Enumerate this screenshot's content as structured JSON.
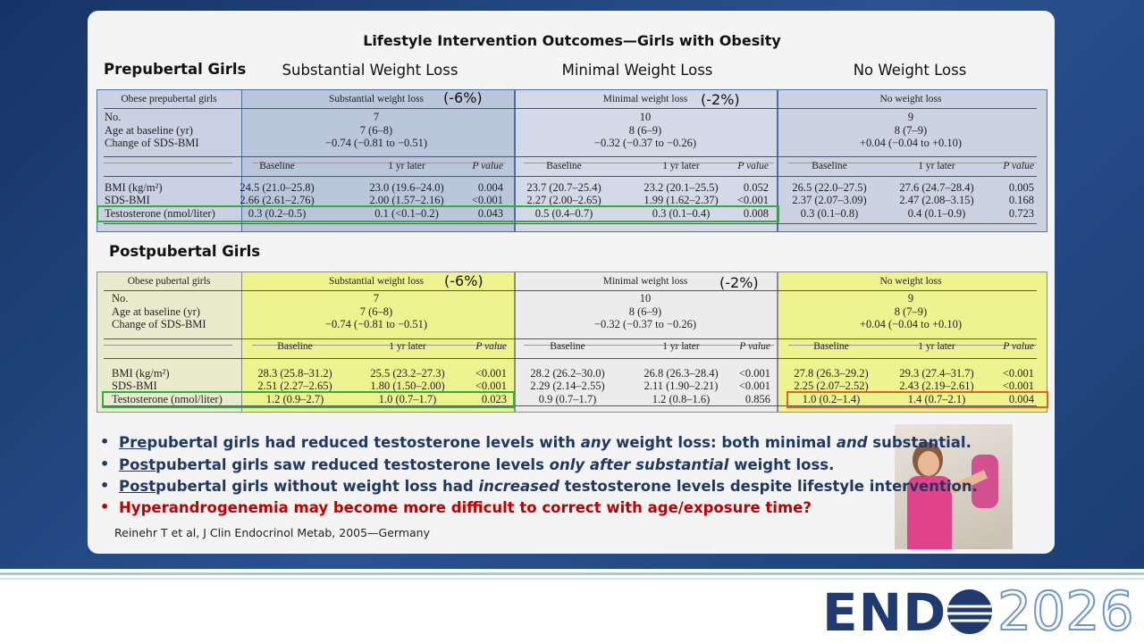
{
  "title": "Lifestyle Intervention Outcomes—Girls with Obesity",
  "column_headings": [
    "Substantial Weight Loss",
    "Minimal Weight Loss",
    "No Weight Loss"
  ],
  "tables": [
    {
      "label": "Prepubertal Girls",
      "corner": "Obese prepubertal girls",
      "groups": [
        "Substantial weight loss",
        "Minimal weight loss",
        "No weight loss"
      ],
      "annotations": [
        "(-6%)",
        "(-2%)"
      ],
      "summary": [
        {
          "label": "No.",
          "values": [
            "7",
            "10",
            "9"
          ]
        },
        {
          "label": "Age at baseline (yr)",
          "values": [
            "7 (6–8)",
            "8 (6–9)",
            "8 (7–9)"
          ]
        },
        {
          "label": "Change of SDS-BMI",
          "values": [
            "−0.74 (−0.81 to −0.51)",
            "−0.32 (−0.37 to −0.26)",
            "+0.04 (−0.04 to +0.10)"
          ]
        }
      ],
      "subheaders": [
        "Baseline",
        "1 yr later",
        "P value"
      ],
      "rows": [
        {
          "label": "BMI (kg/m²)",
          "values": [
            "24.5 (21.0–25.8)",
            "23.0 (19.6–24.0)",
            "0.004",
            "23.7 (20.7–25.4)",
            "23.2 (20.1–25.5)",
            "0.052",
            "26.5 (22.0–27.5)",
            "27.6 (24.7–28.4)",
            "0.005"
          ]
        },
        {
          "label": "SDS-BMI",
          "values": [
            "2.66 (2.61–2.76)",
            "2.00 (1.57–2.16)",
            "<0.001",
            "2.27 (2.00–2.65)",
            "1.99 (1.62–2.37)",
            "<0.001",
            "2.37 (2.07–3.09)",
            "2.47 (2.08–3.15)",
            "0.168"
          ]
        },
        {
          "label": "Testosterone (nmol/liter)",
          "values": [
            "0.3 (0.2–0.5)",
            "0.1 (<0.1–0.2)",
            "0.043",
            "0.5 (0.4–0.7)",
            "0.3 (0.1–0.4)",
            "0.008",
            "0.3 (0.1–0.8)",
            "0.4 (0.1–0.9)",
            "0.723"
          ]
        }
      ]
    },
    {
      "label": "Postpubertal Girls",
      "corner": "Obese pubertal girls",
      "groups": [
        "Substantial weight loss",
        "Minimal weight loss",
        "No weight loss"
      ],
      "annotations": [
        "(-6%)",
        "(-2%)"
      ],
      "summary": [
        {
          "label": "No.",
          "values": [
            "7",
            "10",
            "9"
          ]
        },
        {
          "label": "Age at baseline (yr)",
          "values": [
            "7 (6–8)",
            "8 (6–9)",
            "8 (7–9)"
          ]
        },
        {
          "label": "Change of SDS-BMI",
          "values": [
            "−0.74 (−0.81 to −0.51)",
            "−0.32 (−0.37 to −0.26)",
            "+0.04 (−0.04 to +0.10)"
          ]
        }
      ],
      "subheaders": [
        "Baseline",
        "1 yr later",
        "P value"
      ],
      "rows": [
        {
          "label": "BMI (kg/m²)",
          "values": [
            "28.3 (25.8–31.2)",
            "25.5 (23.2–27.3)",
            "<0.001",
            "28.2 (26.2–30.0)",
            "26.8 (26.3–28.4)",
            "<0.001",
            "27.8 (26.3–29.2)",
            "29.3 (27.4–31.7)",
            "<0.001"
          ]
        },
        {
          "label": "SDS-BMI",
          "values": [
            "2.51 (2.27–2.65)",
            "1.80 (1.50–2.00)",
            "<0.001",
            "2.29 (2.14–2.55)",
            "2.11 (1.90–2.21)",
            "<0.001",
            "2.25 (2.07–2.52)",
            "2.43 (2.19–2.61)",
            "<0.001"
          ]
        },
        {
          "label": "Testosterone (nmol/liter)",
          "values": [
            "1.2 (0.9–2.7)",
            "1.0 (0.7–1.7)",
            "0.023",
            "0.9 (0.7–1.7)",
            "1.2 (0.8–1.6)",
            "0.856",
            "1.0 (0.2–1.4)",
            "1.4 (0.7–2.1)",
            "0.004"
          ]
        }
      ]
    }
  ],
  "bullets": [
    [
      "Pre",
      "pubertal girls had reduced testosterone levels with ",
      "any",
      " weight loss: both minimal ",
      "and",
      " substantial."
    ],
    [
      "Post",
      "pubertal girls saw reduced testosterone levels ",
      "only after substantial",
      " weight loss."
    ],
    [
      "Post",
      "pubertal girls without weight loss had ",
      "increased",
      " testosterone levels despite lifestyle intervention."
    ],
    [
      "Hyperandrogenemia may become more difficult to correct with age/exposure time?"
    ]
  ],
  "citation": "Reinehr T et al, J Clin Endocrinol Metab, 2005—Germany",
  "logo": {
    "word": "END",
    "year": "2026"
  }
}
